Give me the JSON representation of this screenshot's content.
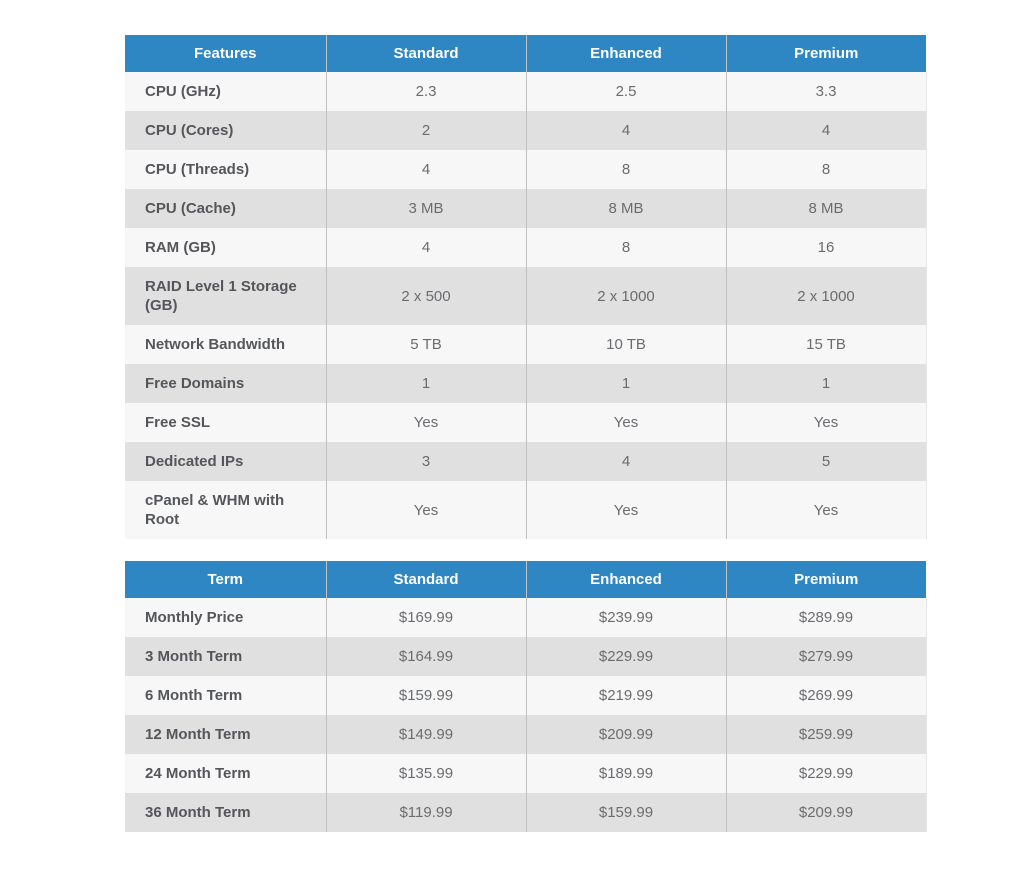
{
  "colors": {
    "header_bg": "#2e86c2",
    "header_text": "#ffffff",
    "row_odd": "#f7f7f7",
    "row_even": "#e0e0e0",
    "label_text": "#54565a",
    "value_text": "#6a6c6f",
    "divider": "#c0c0c0"
  },
  "features_table": {
    "headers": [
      "Features",
      "Standard",
      "Enhanced",
      "Premium"
    ],
    "rows": [
      {
        "label": "CPU (GHz)",
        "values": [
          "2.3",
          "2.5",
          "3.3"
        ]
      },
      {
        "label": "CPU (Cores)",
        "values": [
          "2",
          "4",
          "4"
        ]
      },
      {
        "label": "CPU (Threads)",
        "values": [
          "4",
          "8",
          "8"
        ]
      },
      {
        "label": "CPU (Cache)",
        "values": [
          "3 MB",
          "8 MB",
          "8 MB"
        ]
      },
      {
        "label": "RAM (GB)",
        "values": [
          "4",
          "8",
          "16"
        ]
      },
      {
        "label": "RAID Level 1 Storage (GB)",
        "values": [
          "2 x 500",
          "2 x 1000",
          "2 x 1000"
        ]
      },
      {
        "label": "Network Bandwidth",
        "values": [
          "5 TB",
          "10 TB",
          "15 TB"
        ]
      },
      {
        "label": "Free Domains",
        "values": [
          "1",
          "1",
          "1"
        ]
      },
      {
        "label": "Free SSL",
        "values": [
          "Yes",
          "Yes",
          "Yes"
        ]
      },
      {
        "label": "Dedicated IPs",
        "values": [
          "3",
          "4",
          "5"
        ]
      },
      {
        "label": "cPanel & WHM with Root",
        "values": [
          "Yes",
          "Yes",
          "Yes"
        ]
      }
    ]
  },
  "pricing_table": {
    "headers": [
      "Term",
      "Standard",
      "Enhanced",
      "Premium"
    ],
    "rows": [
      {
        "label": "Monthly Price",
        "values": [
          "$169.99",
          "$239.99",
          "$289.99"
        ]
      },
      {
        "label": "3 Month Term",
        "values": [
          "$164.99",
          "$229.99",
          "$279.99"
        ]
      },
      {
        "label": "6 Month Term",
        "values": [
          "$159.99",
          "$219.99",
          "$269.99"
        ]
      },
      {
        "label": "12 Month Term",
        "values": [
          "$149.99",
          "$209.99",
          "$259.99"
        ]
      },
      {
        "label": "24 Month Term",
        "values": [
          "$135.99",
          "$189.99",
          "$229.99"
        ]
      },
      {
        "label": "36 Month Term",
        "values": [
          "$119.99",
          "$159.99",
          "$209.99"
        ]
      }
    ]
  }
}
